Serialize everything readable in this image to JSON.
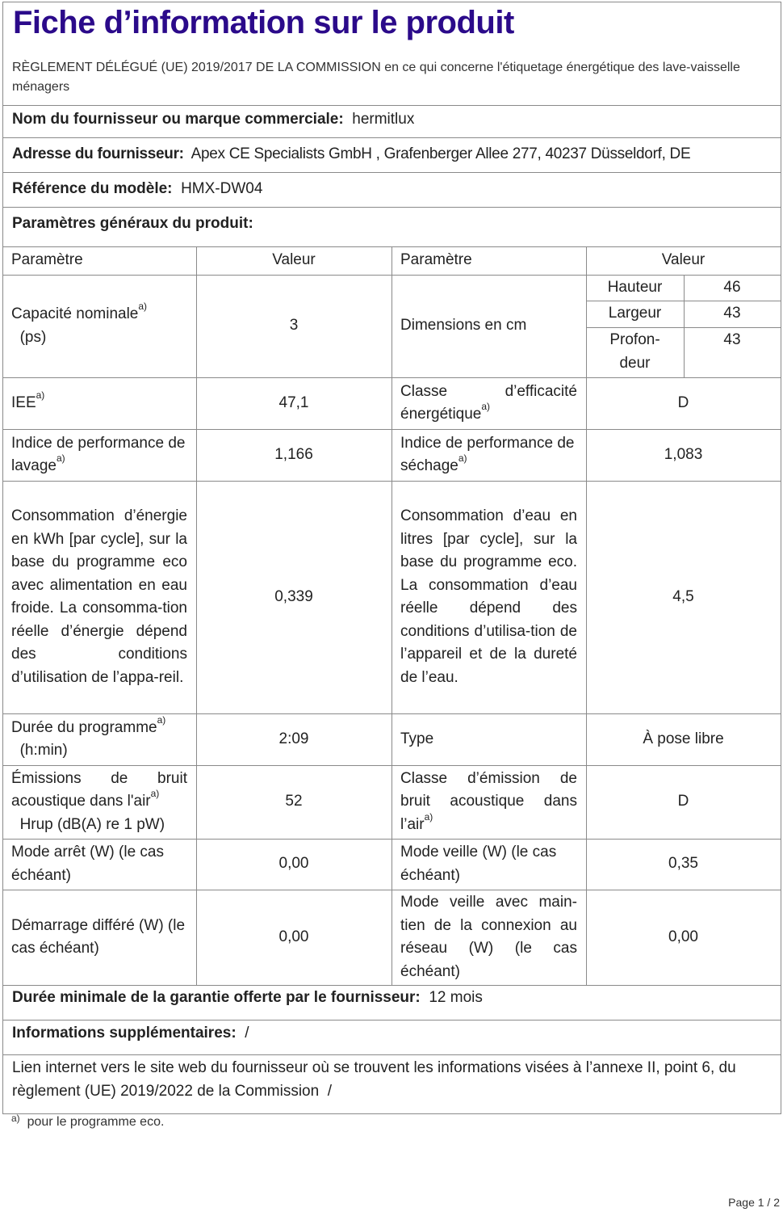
{
  "title": "Fiche d’information sur le produit",
  "regulation": "RÈGLEMENT DÉLÉGUÉ (UE) 2019/2017 DE LA COMMISSION en ce qui concerne l'étiquetage énergétique des lave-vaisselle ménagers",
  "supplier": {
    "label": "Nom du fournisseur ou marque commerciale:",
    "value": "hermitlux"
  },
  "address": {
    "label": "Adresse du fournisseur:",
    "value": "Apex CE Specialists GmbH , Grafenberger Allee 277, 40237 Düsseldorf, DE"
  },
  "model": {
    "label": "Référence du modèle:",
    "value": "HMX-DW04"
  },
  "general_params_label": "Paramètres généraux du produit:",
  "table": {
    "headers": [
      "Paramètre",
      "Valeur",
      "Paramètre",
      "Valeur"
    ],
    "footnote_mark": "a)",
    "capacity": {
      "label": "Capacité nominale",
      "unit": "(ps)",
      "value": "3"
    },
    "dimensions": {
      "label": "Dimensions en cm",
      "height_label": "Hauteur",
      "height": "46",
      "width_label": "Largeur",
      "width": "43",
      "depth_label": "Profon-deur",
      "depth": "43"
    },
    "iee": {
      "label": "IEE",
      "value": "47,1"
    },
    "energy_class": {
      "label": "Classe d’efficacité énergétique",
      "value": "D"
    },
    "wash_index": {
      "label": "Indice de performance de lavage",
      "value": "1,166"
    },
    "dry_index": {
      "label": "Indice de performance de séchage",
      "value": "1,083"
    },
    "energy": {
      "label": "Consommation d’énergie en kWh [par cycle], sur la base du programme eco avec alimentation en eau froide. La consomma-tion réelle d’énergie dépend des conditions d’utilisation de l’appa-reil.",
      "value": "0,339"
    },
    "water": {
      "label": "Consommation d’eau en litres [par cycle], sur la base du programme eco. La consommation d’eau réelle dépend des conditions d’utilisa-tion de l’appareil et de la dureté de l’eau.",
      "value": "4,5"
    },
    "duration": {
      "label": "Durée du programme",
      "unit": "(h:min)",
      "value": "2:09"
    },
    "type": {
      "label": "Type",
      "value": "À pose libre"
    },
    "noise": {
      "label": "Émissions de bruit acoustique dans l'air",
      "unit": "Hrup (dB(A) re 1 pW)",
      "value": "52"
    },
    "noise_class": {
      "label": "Classe d’émission de bruit acoustique dans l’air",
      "value": "D"
    },
    "off_mode": {
      "label": "Mode arrêt (W) (le cas échéant)",
      "value": "0,00"
    },
    "standby": {
      "label": "Mode veille (W) (le cas échéant)",
      "value": "0,35"
    },
    "delay_start": {
      "label": "Démarrage différé (W) (le cas échéant)",
      "value": "0,00"
    },
    "networked_standby": {
      "label": "Mode veille avec main-tien de la connexion au réseau (W) (le cas échéant)",
      "value": "0,00"
    }
  },
  "warranty": {
    "label": "Durée minimale de la garantie offerte par le fournisseur:",
    "value": "12 mois"
  },
  "additional": {
    "label": "Informations supplémentaires:",
    "value": "/"
  },
  "link": {
    "label": "Lien internet vers le site web du fournisseur où se trouvent les informations visées à l’annexe II, point 6, du règlement (UE) 2019/2022 de la Commission",
    "value": "/"
  },
  "footnote": {
    "mark": "a)",
    "text": "pour le programme eco."
  },
  "page_label": "Page 1 / 2"
}
